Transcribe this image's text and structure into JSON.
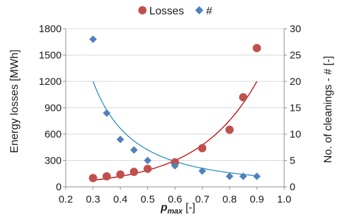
{
  "chart_data": {
    "type": "scatter",
    "legend": {
      "position": "top",
      "entries": [
        {
          "label": "Losses",
          "marker": "circle",
          "color": "#c0504d"
        },
        {
          "label": "#",
          "marker": "diamond",
          "color": "#4f81bd"
        }
      ]
    },
    "x": {
      "label_main": "p",
      "label_sub": "max",
      "label_unit": " [-]",
      "lim": [
        0.2,
        1.0
      ],
      "ticks": [
        "0.2",
        "0.3",
        "0.4",
        "0.5",
        "0.6",
        "0.7",
        "0.8",
        "0.9",
        "1.0"
      ]
    },
    "y_left": {
      "label": "Energy losses [MWh]",
      "lim": [
        0,
        1800
      ],
      "ticks": [
        "0",
        "300",
        "600",
        "900",
        "1200",
        "1500",
        "1800"
      ]
    },
    "y_right": {
      "label": "No. of cleanings - # [-]",
      "lim": [
        0,
        30
      ],
      "ticks": [
        "0",
        "5",
        "10",
        "15",
        "20",
        "25",
        "30"
      ]
    },
    "grid": "horizontal",
    "series": [
      {
        "name": "Losses",
        "axis": "left",
        "color": "#c0504d",
        "marker": "circle",
        "points": [
          [
            0.3,
            100
          ],
          [
            0.35,
            120
          ],
          [
            0.4,
            140
          ],
          [
            0.45,
            170
          ],
          [
            0.5,
            205
          ],
          [
            0.6,
            280
          ],
          [
            0.7,
            440
          ],
          [
            0.8,
            650
          ],
          [
            0.85,
            1020
          ],
          [
            0.9,
            1580
          ]
        ]
      },
      {
        "name": "#",
        "axis": "right",
        "color": "#4f81bd",
        "marker": "diamond",
        "points": [
          [
            0.3,
            28
          ],
          [
            0.35,
            14
          ],
          [
            0.4,
            9
          ],
          [
            0.45,
            7
          ],
          [
            0.5,
            5
          ],
          [
            0.6,
            4
          ],
          [
            0.7,
            3
          ],
          [
            0.8,
            2
          ],
          [
            0.85,
            2
          ],
          [
            0.9,
            2
          ]
        ]
      }
    ],
    "trendlines": [
      {
        "series": "Losses",
        "axis": "left",
        "kind": "exponential",
        "color": "#c00000",
        "x_range": [
          0.3,
          0.9
        ],
        "from_value": 75,
        "to_value": 1200
      },
      {
        "series": "#",
        "axis": "right",
        "kind": "power",
        "color": "#2a8fbd",
        "x_range": [
          0.3,
          0.9
        ],
        "from_value": 20,
        "to_value": 2.1
      }
    ]
  }
}
